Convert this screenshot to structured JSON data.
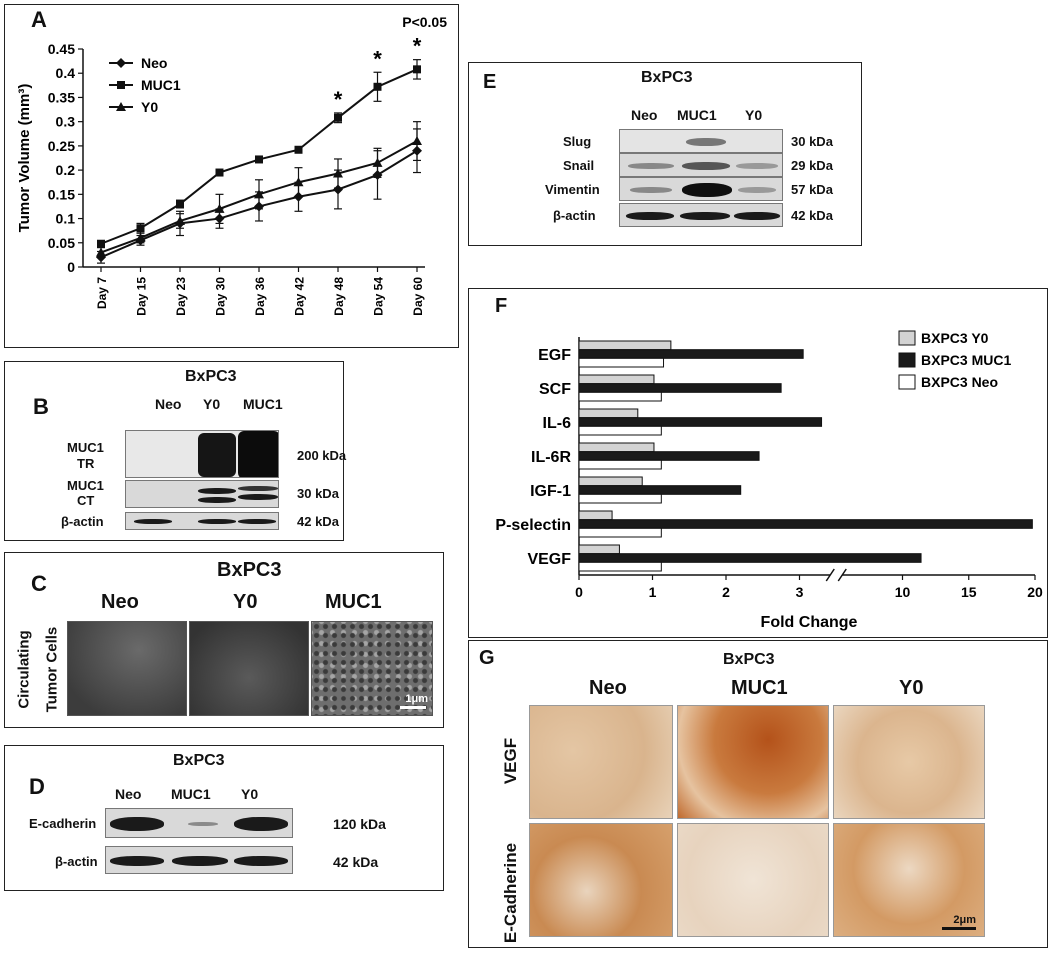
{
  "panel_a": {
    "label": "A",
    "significance": "P<0.05",
    "asterisk": "*",
    "ylabel": "Tumor Volume (mm³)",
    "chart_data": {
      "type": "line",
      "categories": [
        "Day 7",
        "Day 15",
        "Day 23",
        "Day 30",
        "Day 36",
        "Day 42",
        "Day 48",
        "Day 54",
        "Day 60"
      ],
      "ylim": [
        0,
        0.45
      ],
      "yticks": [
        "0",
        "0.05",
        "0.1",
        "0.15",
        "0.2",
        "0.25",
        "0.3",
        "0.35",
        "0.4",
        "0.45"
      ],
      "legend_position": "top-left",
      "series": [
        {
          "name": "Neo",
          "marker": "diamond",
          "values": [
            0.02,
            0.055,
            0.09,
            0.1,
            0.125,
            0.145,
            0.16,
            0.19,
            0.24
          ],
          "errors": [
            0.012,
            0.01,
            0.025,
            0.02,
            0.03,
            0.03,
            0.04,
            0.05,
            0.045
          ]
        },
        {
          "name": "MUC1",
          "marker": "square",
          "values": [
            0.048,
            0.08,
            0.13,
            0.195,
            0.222,
            0.242,
            0.308,
            0.372,
            0.408
          ],
          "errors": [
            0.005,
            0.01,
            0.008,
            0.006,
            0.004,
            0.003,
            0.01,
            0.03,
            0.02
          ]
        },
        {
          "name": "Y0",
          "marker": "triangle",
          "values": [
            0.03,
            0.06,
            0.095,
            0.12,
            0.15,
            0.175,
            0.193,
            0.215,
            0.26
          ],
          "errors": [
            0.01,
            0.01,
            0.015,
            0.03,
            0.03,
            0.03,
            0.03,
            0.03,
            0.04
          ]
        }
      ],
      "significant": [
        "Day 48",
        "Day 54",
        "Day 60"
      ]
    }
  },
  "panel_b": {
    "label": "B",
    "title": "BxPC3",
    "lanes": [
      "Neo",
      "Y0",
      "MUC1"
    ],
    "rows": [
      {
        "label_l1": "MUC1",
        "label_l2": "TR",
        "kda": "200 kDa"
      },
      {
        "label_l1": "MUC1",
        "label_l2": "CT",
        "kda": "30 kDa"
      },
      {
        "label_l1": "β-actin",
        "label_l2": "",
        "kda": "42 kDa"
      }
    ]
  },
  "panel_c": {
    "label": "C",
    "title": "BxPC3",
    "lanes": [
      "Neo",
      "Y0",
      "MUC1"
    ],
    "side_l1": "Circulating",
    "side_l2": "Tumor Cells",
    "scale": "1μm"
  },
  "panel_d": {
    "label": "D",
    "title": "BxPC3",
    "lanes": [
      "Neo",
      "MUC1",
      "Y0"
    ],
    "rows": [
      {
        "label": "E-cadherin",
        "kda": "120 kDa"
      },
      {
        "label": "β-actin",
        "kda": "42 kDa"
      }
    ]
  },
  "panel_e": {
    "label": "E",
    "title": "BxPC3",
    "lanes": [
      "Neo",
      "MUC1",
      "Y0"
    ],
    "rows": [
      {
        "label": "Slug",
        "kda": "30 kDa"
      },
      {
        "label": "Snail",
        "kda": "29 kDa"
      },
      {
        "label": "Vimentin",
        "kda": "57 kDa"
      },
      {
        "label": "β-actin",
        "kda": "42 kDa"
      }
    ]
  },
  "panel_f": {
    "label": "F",
    "xlabel": "Fold Change",
    "xticks": [
      "0",
      "1",
      "2",
      "3",
      "10",
      "15",
      "20"
    ],
    "chart_data": {
      "type": "bar",
      "orientation": "horizontal",
      "axis_break": "after 3.5",
      "categories": [
        "EGF",
        "SCF",
        "IL-6",
        "IL-6R",
        "IGF-1",
        "P-selectin",
        "VEGF"
      ],
      "legend_position": "top-right",
      "series": [
        {
          "name": "BXPC3 Y0",
          "color": "#d3d3d3",
          "values": [
            1.25,
            1.02,
            0.8,
            1.02,
            0.86,
            0.45,
            0.55
          ]
        },
        {
          "name": "BXPC3 MUC1",
          "color": "#1a1a1a",
          "values": [
            3.05,
            2.75,
            3.3,
            2.45,
            2.2,
            19.8,
            11.4
          ]
        },
        {
          "name": "BXPC3 Neo",
          "color": "#ffffff",
          "values": [
            1.15,
            1.12,
            1.12,
            1.12,
            1.12,
            1.12,
            1.12
          ]
        }
      ]
    }
  },
  "panel_g": {
    "label": "G",
    "title": "BxPC3",
    "lanes": [
      "Neo",
      "MUC1",
      "Y0"
    ],
    "rows": [
      "VEGF",
      "E-Cadherine"
    ],
    "scale": "2μm"
  }
}
